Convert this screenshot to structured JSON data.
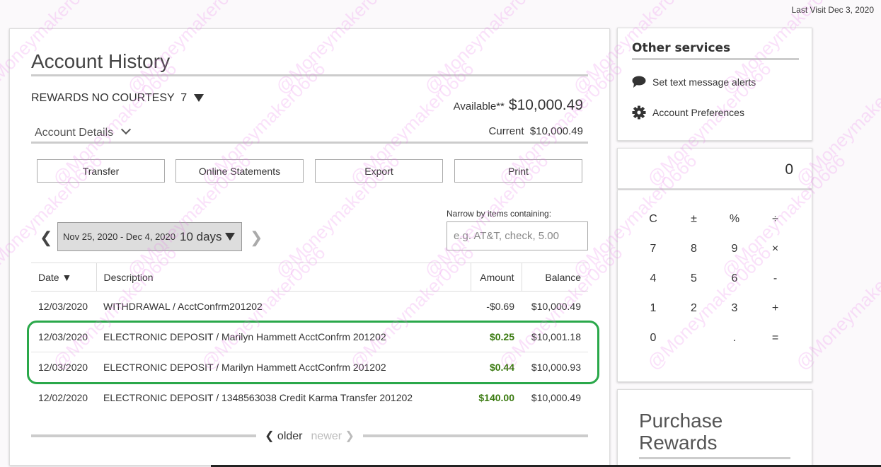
{
  "header": {
    "last_visit": "Last Visit Dec 3, 2020"
  },
  "watermark": "@Moneymaker0666",
  "main": {
    "title": "Account History",
    "account_name": "REWARDS NO COURTESY  7",
    "available_label": "Available**",
    "available_value": "$10,000.49",
    "details_label": "Account Details",
    "current_label": "Current",
    "current_value": "$10,000.49",
    "buttons": [
      "Transfer",
      "Online Statements",
      "Export",
      "Print"
    ],
    "date_range": "Nov 25, 2020 - Dec 4, 2020",
    "days": "10 days",
    "narrow_label": "Narrow by items containing:",
    "search_placeholder": "e.g. AT&T, check, 5.00",
    "columns": [
      "Date",
      "Description",
      "Amount",
      "Balance"
    ],
    "rows": [
      {
        "date": "12/03/2020",
        "desc": "WITHDRAWAL / AcctConfrm201202",
        "amount": "-$0.69",
        "balance": "$10,000.49"
      },
      {
        "date": "12/03/2020",
        "desc": "ELECTRONIC DEPOSIT / Marilyn Hammett AcctConfrm 201202",
        "amount": "$0.25",
        "balance": "$10,001.18"
      },
      {
        "date": "12/03/2020",
        "desc": "ELECTRONIC DEPOSIT / Marilyn Hammett AcctConfrm 201202",
        "amount": "$0.44",
        "balance": "$10,000.93"
      },
      {
        "date": "12/02/2020",
        "desc": "ELECTRONIC DEPOSIT / 1348563038 Credit Karma Transfer 201202",
        "amount": "$140.00",
        "balance": "$10,000.49"
      }
    ],
    "highlight_color": "#2aa84a",
    "deposit_color": "#3a7a10",
    "older": "older",
    "newer": "newer"
  },
  "services": {
    "title": "Other services",
    "links": [
      {
        "label": "Set text message alerts",
        "icon": "speech-bubble-icon"
      },
      {
        "label": "Account Preferences",
        "icon": "gear-icon"
      }
    ]
  },
  "calculator": {
    "display": "0",
    "keys": [
      [
        "C",
        "±",
        "%",
        "÷"
      ],
      [
        "7",
        "8",
        "9",
        "×"
      ],
      [
        "4",
        "5",
        "6",
        "-"
      ],
      [
        "1",
        "2",
        "3",
        "+"
      ],
      [
        "0",
        "",
        ".",
        "="
      ]
    ]
  },
  "rewards": {
    "title_line1": "Purchase",
    "title_line2": "Rewards"
  }
}
